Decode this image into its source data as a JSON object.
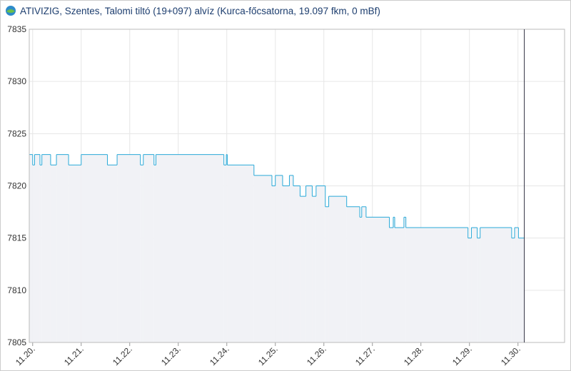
{
  "chart_data": {
    "type": "step",
    "title": "ATIVIZIG, Szentes, Talomi tiltó (19+097) alvíz (Kurca-főcsatorna, 19.097 fkm, 0 mBf)",
    "x": [
      19.93,
      20.0,
      20.04,
      20.15,
      20.19,
      20.37,
      20.49,
      20.74,
      21.0,
      21.54,
      21.74,
      22.22,
      22.28,
      22.5,
      22.54,
      23.94,
      23.99,
      24.01,
      24.56,
      24.93,
      25.0,
      25.15,
      25.29,
      25.37,
      25.51,
      25.63,
      25.76,
      25.84,
      26.03,
      26.1,
      26.47,
      26.74,
      26.78,
      26.87,
      27.35,
      27.43,
      27.46,
      27.65,
      27.69,
      28.97,
      29.04,
      29.16,
      29.22,
      29.87,
      29.93,
      30.01,
      30.13
    ],
    "values": [
      7823,
      7822,
      7823,
      7822,
      7823,
      7822,
      7823,
      7822,
      7823,
      7822,
      7823,
      7822,
      7823,
      7822,
      7823,
      7822,
      7823,
      7822,
      7821,
      7820,
      7821,
      7820,
      7821,
      7820,
      7819,
      7820,
      7819,
      7820,
      7818,
      7819,
      7818,
      7817,
      7818,
      7817,
      7816,
      7817,
      7816,
      7817,
      7816,
      7815,
      7816,
      7815,
      7816,
      7815,
      7816,
      7815,
      7815
    ],
    "color": "#29a9d8",
    "fill": "#f1f2f6",
    "now_line": 30.13,
    "xlim": [
      19.93,
      30.96
    ],
    "xticks": [
      {
        "value": 20,
        "label": "11.20."
      },
      {
        "value": 21,
        "label": "11.21."
      },
      {
        "value": 22,
        "label": "11.22."
      },
      {
        "value": 23,
        "label": "11.23."
      },
      {
        "value": 24,
        "label": "11.24."
      },
      {
        "value": 25,
        "label": "11.25."
      },
      {
        "value": 26,
        "label": "11.26."
      },
      {
        "value": 27,
        "label": "11.27."
      },
      {
        "value": 28,
        "label": "11.28."
      },
      {
        "value": 29,
        "label": "11.29."
      },
      {
        "value": 30,
        "label": "11.30."
      }
    ],
    "ylim": [
      7805,
      7835
    ],
    "yticks": [
      7805,
      7810,
      7815,
      7820,
      7825,
      7830,
      7835
    ],
    "grid": true
  }
}
